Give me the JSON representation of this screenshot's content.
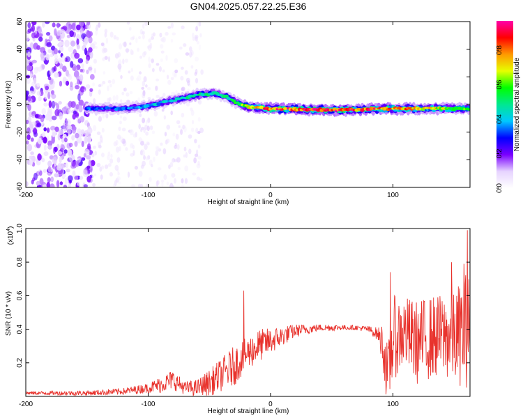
{
  "figure": {
    "title": "GN04.2025.057.22.25.E36"
  },
  "chart_data": [
    {
      "type": "heatmap",
      "xlabel": "Height of straight line (km)",
      "ylabel": "Frequency (Hz)",
      "xlim": [
        -200,
        163
      ],
      "ylim": [
        -60,
        60
      ],
      "xticks": [
        -200,
        -100,
        0,
        100
      ],
      "yticks": [
        -60,
        -40,
        -20,
        0,
        20,
        40,
        60
      ],
      "colorbar": {
        "label": "Normalized spectral amplitude",
        "range": [
          0,
          0.97
        ],
        "ticks": [
          "0.0",
          "0.2",
          "0.4",
          "0.6",
          "0.8"
        ],
        "colormap": [
          "#ffffff",
          "#e6d3ff",
          "#7a00ff",
          "#0000ff",
          "#00c8ff",
          "#00e890",
          "#00ff00",
          "#e6ff00",
          "#ff9900",
          "#ff0000",
          "#ff00aa"
        ]
      },
      "ridge": {
        "x": [
          -150,
          -120,
          -100,
          -80,
          -60,
          -45,
          -35,
          -25,
          -15,
          0,
          50,
          100,
          163
        ],
        "y": [
          -3,
          -3,
          -1,
          3,
          7,
          8,
          5,
          0,
          -2,
          -3,
          -4,
          -3,
          -3
        ],
        "peak_amplitude": [
          0.3,
          0.3,
          0.35,
          0.4,
          0.45,
          0.45,
          0.45,
          0.55,
          0.75,
          0.85,
          0.9,
          0.8,
          0.6
        ]
      },
      "noise": {
        "strong_scatter_x_range": [
          -200,
          -145
        ],
        "faint_scatter_x_range": [
          -145,
          -55
        ]
      }
    },
    {
      "type": "line",
      "xlabel": "Height of straight line (km)",
      "ylabel": "SNR (10 * v/v)",
      "multiplier": [
        "(x10",
        "4",
        ")"
      ],
      "xlim": [
        -200,
        163
      ],
      "ylim": [
        0,
        1.0
      ],
      "xticks": [
        -200,
        -100,
        0,
        100
      ],
      "yticks": [
        0.2,
        0.4,
        0.6,
        0.8,
        1.0
      ],
      "color": "#e8322c",
      "series": [
        {
          "x": [
            -200,
            -150,
            -120,
            -100,
            -90,
            -80,
            -70,
            -60,
            -50,
            -40,
            -30,
            -20,
            -10,
            0,
            10,
            20,
            30,
            40,
            50,
            60,
            70,
            80,
            88,
            92,
            96,
            100,
            110,
            120,
            130,
            140,
            150,
            160,
            163
          ],
          "y": [
            0.02,
            0.02,
            0.03,
            0.05,
            0.07,
            0.1,
            0.05,
            0.05,
            0.08,
            0.13,
            0.18,
            0.25,
            0.3,
            0.33,
            0.36,
            0.39,
            0.4,
            0.41,
            0.41,
            0.41,
            0.41,
            0.4,
            0.37,
            0.3,
            0.1,
            0.35,
            0.38,
            0.32,
            0.35,
            0.36,
            0.35,
            0.4,
            0.4
          ],
          "fluctuation": [
            0.01,
            0.015,
            0.02,
            0.03,
            0.05,
            0.06,
            0.04,
            0.05,
            0.08,
            0.1,
            0.12,
            0.1,
            0.1,
            0.08,
            0.06,
            0.04,
            0.03,
            0.02,
            0.02,
            0.015,
            0.015,
            0.02,
            0.04,
            0.15,
            0.2,
            0.25,
            0.22,
            0.25,
            0.25,
            0.25,
            0.28,
            0.35,
            0.35
          ],
          "spikes": [
            {
              "x": -22,
              "y": 0.63
            },
            {
              "x": 98,
              "y": 0.74
            },
            {
              "x": 148,
              "y": 0.8
            },
            {
              "x": 158,
              "y": 0.79
            },
            {
              "x": 161,
              "y": 0.99
            }
          ]
        }
      ]
    }
  ]
}
